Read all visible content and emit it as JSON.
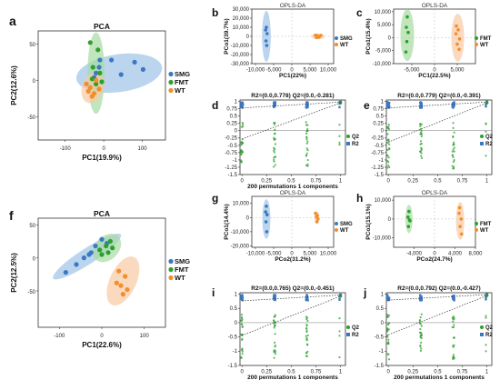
{
  "colors": {
    "SMG": "#3b78c4",
    "FMT": "#2ca02c",
    "WT": "#f28e2b",
    "SMG_fill": "#9cc3e6",
    "FMT_fill": "#a7dba2",
    "WT_fill": "#f8c9a2"
  },
  "chart_data": [
    {
      "id": "a",
      "letter": "a",
      "type": "scatter",
      "title": "PCA",
      "xlabel": "PC1(19.9%)",
      "ylabel": "PC2(12.6%)",
      "xlim": [
        -170,
        160
      ],
      "ylim": [
        -82,
        68
      ],
      "xticks": [
        -100,
        0,
        100
      ],
      "yticks": [
        -50,
        0,
        50
      ],
      "legend": [
        "SMG",
        "FMT",
        "WT"
      ],
      "series": [
        {
          "name": "SMG",
          "points": [
            [
              20,
              28
            ],
            [
              -12,
              18
            ],
            [
              -20,
              10
            ],
            [
              -25,
              4
            ],
            [
              45,
              8
            ],
            [
              80,
              25
            ],
            [
              102,
              15
            ],
            [
              -10,
              28
            ]
          ],
          "ellipse": {
            "cx": 40,
            "cy": 10,
            "rx": 112,
            "ry": 26,
            "angle": -8
          }
        },
        {
          "name": "FMT",
          "points": [
            [
              -35,
              52
            ],
            [
              -15,
              42
            ],
            [
              -28,
              18
            ],
            [
              -10,
              10
            ],
            [
              -20,
              -5
            ],
            [
              -30,
              2
            ],
            [
              -5,
              -2
            ]
          ],
          "ellipse": {
            "cx": -20,
            "cy": 10,
            "rx": 22,
            "ry": 56,
            "angle": 0
          }
        },
        {
          "name": "WT",
          "points": [
            [
              -45,
              -5
            ],
            [
              -35,
              -10
            ],
            [
              -25,
              -18
            ],
            [
              -12,
              -12
            ],
            [
              -30,
              -22
            ],
            [
              -20,
              0
            ],
            [
              -40,
              -15
            ]
          ],
          "ellipse": {
            "cx": -28,
            "cy": -10,
            "rx": 28,
            "ry": 22,
            "angle": 20
          }
        }
      ]
    },
    {
      "id": "b",
      "letter": "b",
      "type": "scatter",
      "title": "OPLS-DA",
      "xlabel": "PC1(22%)",
      "ylabel": "PCo1(39.7%)",
      "xlim": [
        -11000,
        11500
      ],
      "ylim": [
        -30000,
        30000
      ],
      "xticks": [
        -10000,
        -5000,
        0,
        5000,
        10000
      ],
      "yticks": [
        -30000,
        -20000,
        -10000,
        0,
        10000,
        20000,
        30000
      ],
      "legend": [
        "SMG",
        "WT"
      ],
      "series": [
        {
          "name": "SMG",
          "points": [
            [
              -7000,
              10000
            ],
            [
              -7200,
              7000
            ],
            [
              -6800,
              3000
            ],
            [
              -7100,
              -5000
            ],
            [
              -6900,
              -10000
            ]
          ],
          "ellipse": {
            "cx": -7000,
            "cy": 0,
            "rx": 1200,
            "ry": 28000,
            "angle": 0
          }
        },
        {
          "name": "WT",
          "points": [
            [
              6500,
              1200
            ],
            [
              7000,
              600
            ],
            [
              7500,
              -800
            ],
            [
              6800,
              -1200
            ],
            [
              7200,
              200
            ],
            [
              8000,
              1000
            ]
          ],
          "ellipse": {
            "cx": 7200,
            "cy": 0,
            "rx": 1800,
            "ry": 3200,
            "angle": 0
          }
        }
      ]
    },
    {
      "id": "c",
      "letter": "c",
      "type": "scatter",
      "title": "OPLS-DA",
      "xlabel": "PC1(22.5%)",
      "ylabel": "PCo1(15.4%)",
      "xlim": [
        -9000,
        9000
      ],
      "ylim": [
        -10000,
        11000
      ],
      "xticks": [
        -5000,
        0,
        5000
      ],
      "yticks": [
        -10000,
        -5000,
        0,
        5000,
        10000
      ],
      "legend": [
        "FMT",
        "WT"
      ],
      "series": [
        {
          "name": "FMT",
          "points": [
            [
              -6000,
              8000
            ],
            [
              -6200,
              4000
            ],
            [
              -5800,
              2000
            ],
            [
              -6100,
              -1500
            ],
            [
              -6300,
              -5500
            ]
          ],
          "ellipse": {
            "cx": -6000,
            "cy": 1000,
            "rx": 1500,
            "ry": 10000,
            "angle": 0
          }
        },
        {
          "name": "WT",
          "points": [
            [
              4800,
              4500
            ],
            [
              5200,
              3000
            ],
            [
              5500,
              -500
            ],
            [
              5000,
              -2500
            ],
            [
              4700,
              1500
            ],
            [
              5400,
              -4500
            ]
          ],
          "ellipse": {
            "cx": 5100,
            "cy": 0,
            "rx": 1400,
            "ry": 9200,
            "angle": 0
          }
        }
      ]
    },
    {
      "id": "d",
      "letter": "d",
      "type": "scatter",
      "subtype": "permutation",
      "stats": "R2=(0.0,0.778)   Q2=(0.0,-0.281)",
      "xlabel": "200 permutations 1 components",
      "xlim": [
        -0.02,
        1.05
      ],
      "ylim": [
        -1.5,
        1.05
      ],
      "xticks": [
        0.0,
        0.25,
        0.5,
        0.75,
        1.0
      ],
      "yticks": [
        -1.5,
        -1.25,
        -1.0,
        -0.75,
        -0.5,
        -0.25,
        0.0,
        0.25,
        0.5,
        0.75,
        1.0
      ],
      "legend": [
        "Q2",
        "R2"
      ],
      "original": {
        "R2": 0.978,
        "Q2": 0.95
      },
      "r2_line": [
        [
          0,
          0.778
        ],
        [
          1.0,
          0.978
        ]
      ],
      "q2_line": [
        [
          0,
          -0.281
        ],
        [
          1.0,
          0.95
        ]
      ]
    },
    {
      "id": "e",
      "letter": "e",
      "type": "scatter",
      "subtype": "permutation",
      "stats": "R2=(0.0,0.779)   Q2=(0.0,-0.391)",
      "xlabel": "",
      "xlim": [
        -0.02,
        1.05
      ],
      "ylim": [
        -1.5,
        1.05
      ],
      "xticks": [
        0.0,
        0.25,
        0.5,
        0.75,
        1.0
      ],
      "yticks": [
        -1.5,
        -1.25,
        -1.0,
        -0.75,
        -0.5,
        -0.25,
        0.0,
        0.25,
        0.5,
        0.75,
        1.0
      ],
      "legend": [
        "Q2",
        "R2"
      ],
      "original": {
        "R2": 0.98,
        "Q2": 0.95
      },
      "r2_line": [
        [
          0,
          0.779
        ],
        [
          1.0,
          0.98
        ]
      ],
      "q2_line": [
        [
          0,
          -0.391
        ],
        [
          1.0,
          0.95
        ]
      ]
    },
    {
      "id": "f",
      "letter": "f",
      "type": "scatter",
      "title": "PCA",
      "xlabel": "PC1(22.6%)",
      "ylabel": "PC2(12.5%)",
      "xlim": [
        -150,
        150
      ],
      "ylim": [
        -105,
        60
      ],
      "xticks": [
        -100,
        0,
        100
      ],
      "yticks": [
        -50,
        0,
        50
      ],
      "legend": [
        "SMG",
        "FMT",
        "WT"
      ],
      "series": [
        {
          "name": "SMG",
          "points": [
            [
              -85,
              -22
            ],
            [
              -60,
              -10
            ],
            [
              -42,
              0
            ],
            [
              -25,
              8
            ],
            [
              -15,
              18
            ],
            [
              0,
              28
            ],
            [
              12,
              22
            ],
            [
              -30,
              5
            ]
          ],
          "ellipse": {
            "cx": -35,
            "cy": 2,
            "rx": 95,
            "ry": 12,
            "angle": -33
          }
        },
        {
          "name": "FMT",
          "points": [
            [
              -5,
              12
            ],
            [
              10,
              18
            ],
            [
              20,
              25
            ],
            [
              15,
              8
            ],
            [
              0,
              5
            ],
            [
              25,
              15
            ]
          ],
          "ellipse": {
            "cx": 12,
            "cy": 15,
            "rx": 38,
            "ry": 18,
            "angle": -45
          }
        },
        {
          "name": "WT",
          "points": [
            [
              40,
              -20
            ],
            [
              55,
              -28
            ],
            [
              35,
              -38
            ],
            [
              45,
              -42
            ],
            [
              60,
              -48
            ],
            [
              50,
              -55
            ]
          ],
          "ellipse": {
            "cx": 50,
            "cy": -35,
            "rx": 62,
            "ry": 20,
            "angle": -65
          }
        }
      ]
    },
    {
      "id": "g",
      "letter": "g",
      "type": "scatter",
      "title": "OPLS-DA",
      "xlabel": "PCo2(31.2%)",
      "ylabel": "PCo1(14.4%)",
      "xlim": [
        -11000,
        11500
      ],
      "ylim": [
        -21000,
        15000
      ],
      "xticks": [
        -10000,
        -5000,
        0,
        5000,
        10000
      ],
      "yticks": [
        -20000,
        -10000,
        0,
        10000
      ],
      "legend": [
        "SMG",
        "WT"
      ],
      "series": [
        {
          "name": "SMG",
          "points": [
            [
              -7000,
              8000
            ],
            [
              -7200,
              4000
            ],
            [
              -6800,
              2000
            ],
            [
              -7100,
              -3000
            ],
            [
              -6900,
              -10000
            ]
          ],
          "ellipse": {
            "cx": -7000,
            "cy": -1000,
            "rx": 1100,
            "ry": 14000,
            "angle": 0
          }
        },
        {
          "name": "WT",
          "points": [
            [
              6500,
              3000
            ],
            [
              6800,
              500
            ],
            [
              7200,
              -1000
            ],
            [
              6900,
              -3000
            ],
            [
              7000,
              1500
            ]
          ],
          "ellipse": {
            "cx": 6900,
            "cy": 0,
            "rx": 700,
            "ry": 4500,
            "angle": 0
          }
        }
      ]
    },
    {
      "id": "h",
      "letter": "h",
      "type": "scatter",
      "title": "OPLS-DA",
      "xlabel": "PCo2(24.7%)",
      "ylabel": "PCo1(15.1%)",
      "xlim": [
        -8000,
        8000
      ],
      "ylim": [
        -15000,
        12000
      ],
      "xticks": [
        -4000,
        0,
        4000,
        8000
      ],
      "yticks": [
        -10000,
        0,
        10000
      ],
      "legend": [
        "FMT",
        "WT"
      ],
      "series": [
        {
          "name": "FMT",
          "points": [
            [
              -5000,
              4000
            ],
            [
              -5200,
              1000
            ],
            [
              -4800,
              -1000
            ],
            [
              -5100,
              -4000
            ],
            [
              -4900,
              -500
            ]
          ],
          "ellipse": {
            "cx": -5000,
            "cy": 0,
            "rx": 700,
            "ry": 7500,
            "angle": 0
          }
        },
        {
          "name": "WT",
          "points": [
            [
              4800,
              3000
            ],
            [
              5200,
              0
            ],
            [
              5000,
              -4000
            ],
            [
              5300,
              -8000
            ],
            [
              4900,
              6000
            ]
          ],
          "ellipse": {
            "cx": 5000,
            "cy": -1000,
            "rx": 800,
            "ry": 10000,
            "angle": 0
          }
        }
      ]
    },
    {
      "id": "i",
      "letter": "i",
      "type": "scatter",
      "subtype": "permutation",
      "stats": "R2=(0.0,0.765)   Q2=(0.0,-0.451)",
      "xlabel": "200 permutations 1 components",
      "xlim": [
        -0.02,
        1.05
      ],
      "ylim": [
        -1.5,
        1.05
      ],
      "xticks": [
        0.0,
        0.25,
        0.5,
        0.75,
        1.0
      ],
      "yticks": [
        -1.5,
        -1.0,
        -0.5,
        0.0,
        0.5,
        1.0
      ],
      "legend": [
        "Q2",
        "R2"
      ],
      "original": {
        "R2": 0.97,
        "Q2": 0.93
      },
      "r2_line": [
        [
          0,
          0.765
        ],
        [
          1.0,
          0.97
        ]
      ],
      "q2_line": [
        [
          0,
          -0.451
        ],
        [
          1.0,
          0.93
        ]
      ]
    },
    {
      "id": "j",
      "letter": "j",
      "type": "scatter",
      "subtype": "permutation",
      "stats": "R2=(0.0,0.792)   Q2=(0.0,-0.427)",
      "xlabel": "200 permutations 1 components",
      "xlim": [
        -0.02,
        1.05
      ],
      "ylim": [
        -1.5,
        1.05
      ],
      "xticks": [
        0.0,
        0.25,
        0.5,
        0.75,
        1.0
      ],
      "yticks": [
        -1.5,
        -1.0,
        -0.5,
        0.0,
        0.5,
        1.0
      ],
      "legend": [
        "Q2",
        "R2"
      ],
      "original": {
        "R2": 0.985,
        "Q2": 0.95
      },
      "r2_line": [
        [
          0,
          0.792
        ],
        [
          1.0,
          0.985
        ]
      ],
      "q2_line": [
        [
          0,
          -0.427
        ],
        [
          1.0,
          0.95
        ]
      ]
    }
  ]
}
